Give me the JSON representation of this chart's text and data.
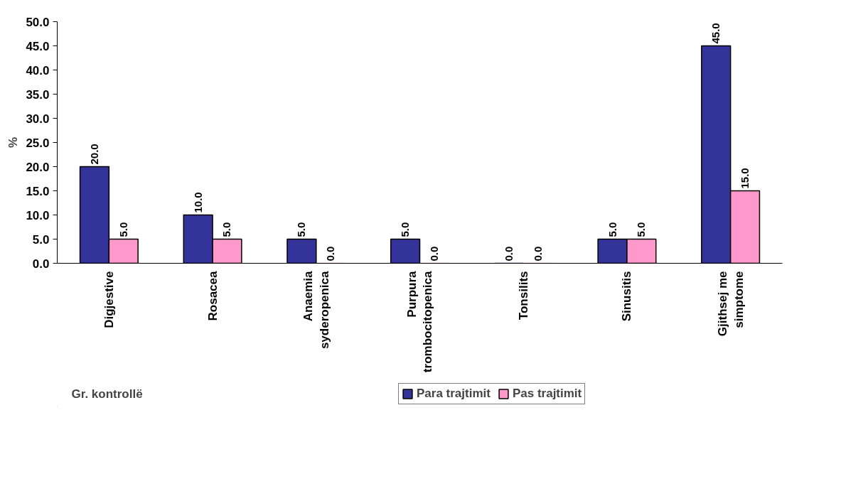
{
  "chart_data": {
    "type": "bar",
    "ylabel": "%",
    "categories": [
      "Digjestive",
      "Rosacea",
      "Anaemia syderopenica",
      "Purpura trombocitopenica",
      "Tonsilits",
      "Sinusitis",
      "Gjithsej me simptome"
    ],
    "series": [
      {
        "name": "Para trajtimit",
        "color": "#333399",
        "values": [
          20.0,
          10.0,
          5.0,
          5.0,
          0.0,
          5.0,
          45.0
        ],
        "value_labels": [
          "20.0",
          "10.0",
          "5.0",
          "5.0",
          "0.0",
          "5.0",
          "45.0"
        ]
      },
      {
        "name": "Pas trajtimit",
        "color": "#ff99cc",
        "values": [
          5.0,
          5.0,
          0.0,
          0.0,
          0.0,
          5.0,
          15.0
        ],
        "value_labels": [
          "5.0",
          "5.0",
          "0.0",
          "0.0",
          "0.0",
          "5.0",
          "15.0"
        ]
      }
    ],
    "ylim": [
      0,
      50
    ],
    "yticks": [
      {
        "value": 0,
        "label": "0.0"
      },
      {
        "value": 5,
        "label": "5.0"
      },
      {
        "value": 10,
        "label": "10.0"
      },
      {
        "value": 15,
        "label": "15.0"
      },
      {
        "value": 20,
        "label": "20.0"
      },
      {
        "value": 25,
        "label": "25.0"
      },
      {
        "value": 30,
        "label": "30.0"
      },
      {
        "value": 35,
        "label": "35.0"
      },
      {
        "value": 40,
        "label": "40.0"
      },
      {
        "value": 45,
        "label": "45.0"
      },
      {
        "value": 50,
        "label": "50.0"
      }
    ],
    "legend": "bottom",
    "grid": false,
    "annotations": [
      "Gr. kontrollë"
    ]
  }
}
